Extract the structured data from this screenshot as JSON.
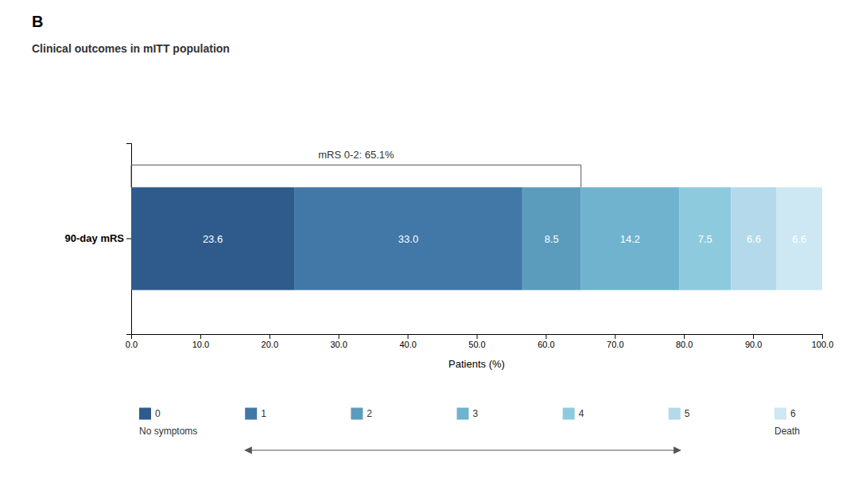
{
  "chart_data": {
    "type": "bar",
    "orientation": "horizontal",
    "stacked": true,
    "data_labels": true,
    "legend": "bottom",
    "grid": false,
    "panel_label": "B",
    "title": "Clinical outcomes in mITT population",
    "x_label": "Patients (%)",
    "categories": [
      "90-day mRS"
    ],
    "series": [
      {
        "name": "0",
        "color": "#2E5B8C",
        "values": [
          23.6
        ],
        "value_labels": [
          "23.6"
        ],
        "legend_sublabel": "No symptoms"
      },
      {
        "name": "1",
        "color": "#4178A8",
        "values": [
          33.0
        ],
        "value_labels": [
          "33.0"
        ]
      },
      {
        "name": "2",
        "color": "#5B9CBD",
        "values": [
          8.5
        ],
        "value_labels": [
          "8.5"
        ]
      },
      {
        "name": "3",
        "color": "#6FB3CF",
        "values": [
          14.2
        ],
        "value_labels": [
          "14.2"
        ]
      },
      {
        "name": "4",
        "color": "#8ECADE",
        "values": [
          7.5
        ],
        "value_labels": [
          "7.5"
        ]
      },
      {
        "name": "5",
        "color": "#B3D9EA",
        "values": [
          6.6
        ],
        "value_labels": [
          "6.6"
        ]
      },
      {
        "name": "6",
        "color": "#CDE8F2",
        "values": [
          6.6
        ],
        "value_labels": [
          "6.6"
        ],
        "legend_sublabel": "Death"
      }
    ],
    "xlim": [
      0,
      100
    ],
    "xticks": [
      {
        "value": 0,
        "label": "0.0"
      },
      {
        "value": 10,
        "label": "10.0"
      },
      {
        "value": 20,
        "label": "20.0"
      },
      {
        "value": 30,
        "label": "30.0"
      },
      {
        "value": 40,
        "label": "40.0"
      },
      {
        "value": 50,
        "label": "50.0"
      },
      {
        "value": 60,
        "label": "60.0"
      },
      {
        "value": 70,
        "label": "70.0"
      },
      {
        "value": 80,
        "label": "80.0"
      },
      {
        "value": 90,
        "label": "90.0"
      },
      {
        "value": 100,
        "label": "100.0"
      }
    ],
    "annotations": [
      {
        "text": "mRS 0-2: 65.1%",
        "bracket": [
          0,
          65.1
        ]
      }
    ]
  }
}
